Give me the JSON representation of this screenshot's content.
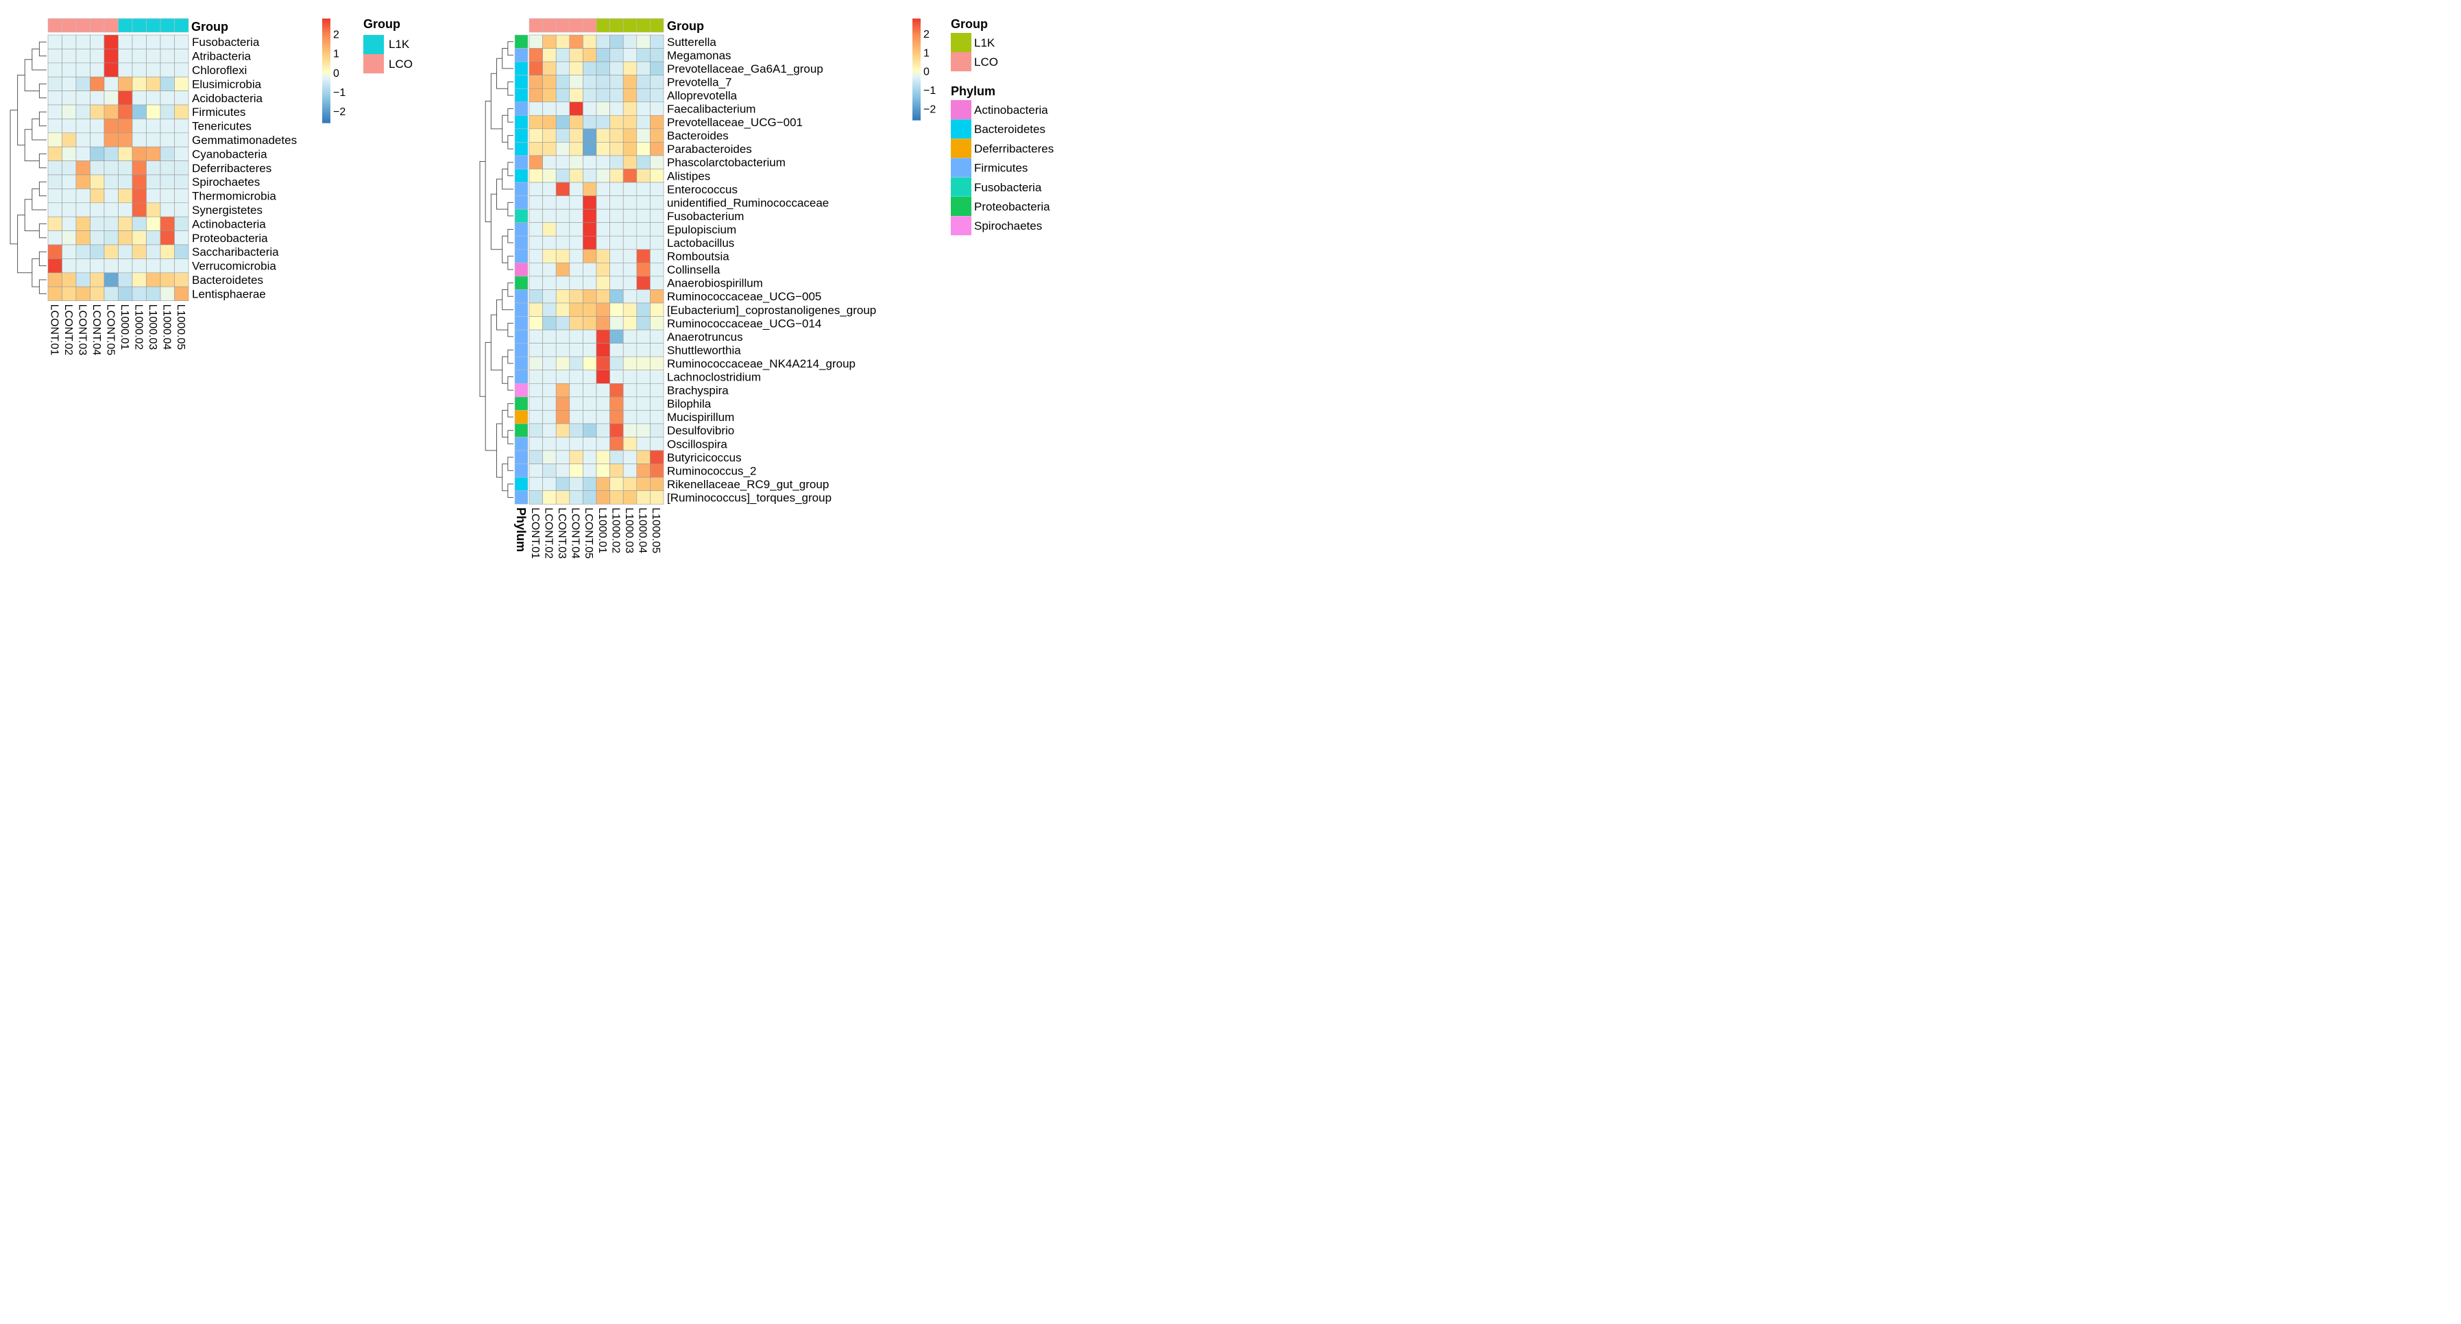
{
  "colors": {
    "LCO": "#F8978F",
    "L1K_left": "#16D1D9",
    "L1K_right": "#A7C40F",
    "phylum": {
      "Actinobacteria": "#F47CD9",
      "Bacteroidetes": "#00CFF0",
      "Deferribacteres": "#F5A700",
      "Firmicutes": "#6EB2FF",
      "Fusobacteria": "#17D6B8",
      "Proteobacteria": "#18C75A",
      "Spirochaetes": "#F98BEA"
    }
  },
  "chart_data": [
    {
      "type": "heatmap",
      "title": "Group",
      "columns": [
        "LCONT.01",
        "LCONT.02",
        "LCONT.03",
        "LCONT.04",
        "LCONT.05",
        "L1000.01",
        "L1000.02",
        "L1000.03",
        "L1000.04",
        "L1000.05"
      ],
      "column_groups": [
        "LCO",
        "LCO",
        "LCO",
        "LCO",
        "LCO",
        "L1K",
        "L1K",
        "L1K",
        "L1K",
        "L1K"
      ],
      "rows": [
        "Fusobacteria",
        "Atribacteria",
        "Chloroflexi",
        "Elusimicrobia",
        "Acidobacteria",
        "Firmicutes",
        "Tenericutes",
        "Gemmatimonadetes",
        "Cyanobacteria",
        "Deferribacteres",
        "Spirochaetes",
        "Thermomicrobia",
        "Synergistetes",
        "Actinobacteria",
        "Proteobacteria",
        "Saccharibacteria",
        "Verrucomicrobia",
        "Bacteroidetes",
        "Lentisphaerae"
      ],
      "values": [
        [
          -0.3,
          -0.3,
          -0.3,
          -0.3,
          2.9,
          -0.3,
          -0.3,
          -0.3,
          -0.3,
          -0.3
        ],
        [
          -0.3,
          -0.3,
          -0.3,
          -0.3,
          2.9,
          -0.3,
          -0.3,
          -0.3,
          -0.3,
          -0.3
        ],
        [
          -0.3,
          -0.3,
          -0.3,
          -0.3,
          2.9,
          -0.3,
          -0.3,
          -0.3,
          -0.3,
          -0.3
        ],
        [
          -0.4,
          -0.3,
          -0.6,
          1.9,
          -0.3,
          1.2,
          0.2,
          0.6,
          -0.8,
          0.1
        ],
        [
          -0.3,
          -0.3,
          -0.3,
          -0.3,
          -0.2,
          2.6,
          -0.3,
          -0.3,
          -0.3,
          -0.3
        ],
        [
          -0.3,
          -0.2,
          -0.4,
          0.6,
          1.1,
          2.2,
          -1.2,
          0.0,
          -0.5,
          0.5
        ],
        [
          -0.3,
          -0.3,
          -0.3,
          -0.3,
          1.8,
          1.8,
          -0.3,
          -0.3,
          -0.3,
          -0.3
        ],
        [
          -0.1,
          0.6,
          -0.3,
          -0.3,
          1.6,
          1.6,
          -0.3,
          -0.3,
          -0.3,
          -0.3
        ],
        [
          0.6,
          -0.2,
          -0.3,
          -1.0,
          -0.7,
          0.3,
          1.5,
          1.4,
          -0.6,
          -0.3
        ],
        [
          -0.4,
          -0.4,
          1.5,
          -0.4,
          -0.4,
          -0.4,
          2.0,
          -0.4,
          -0.4,
          -0.4
        ],
        [
          -0.4,
          -0.3,
          1.2,
          0.3,
          -0.4,
          -0.4,
          2.2,
          -0.4,
          -0.4,
          -0.4
        ],
        [
          -0.3,
          -0.3,
          -0.3,
          0.6,
          -0.3,
          0.5,
          2.3,
          -0.3,
          -0.3,
          -0.3
        ],
        [
          -0.3,
          -0.3,
          -0.3,
          -0.3,
          -0.3,
          -0.3,
          2.3,
          0.5,
          -0.3,
          -0.3
        ],
        [
          0.4,
          -0.3,
          0.8,
          -0.4,
          -0.4,
          0.5,
          -0.6,
          0.0,
          2.3,
          -0.5
        ],
        [
          -0.3,
          -0.2,
          0.9,
          -0.4,
          -0.5,
          0.7,
          0.2,
          -0.5,
          2.4,
          -0.3
        ],
        [
          2.2,
          -0.3,
          -0.5,
          -0.7,
          0.5,
          -0.4,
          0.6,
          -0.4,
          0.3,
          -0.8
        ],
        [
          2.7,
          -0.3,
          -0.3,
          -0.3,
          -0.3,
          -0.3,
          -0.3,
          -0.3,
          -0.3,
          -0.3
        ],
        [
          1.1,
          0.8,
          -0.6,
          0.6,
          -1.8,
          -0.6,
          0.2,
          1.0,
          0.8,
          0.6
        ],
        [
          1.0,
          0.7,
          1.0,
          0.6,
          -0.5,
          -0.9,
          -0.6,
          -0.7,
          -0.2,
          1.3
        ]
      ],
      "legend": {
        "ticks": [
          2,
          1,
          0,
          -1,
          -2
        ],
        "range": [
          -2.6,
          2.8
        ]
      },
      "group_legend": {
        "title": "Group",
        "items": [
          "L1K",
          "LCO"
        ]
      }
    },
    {
      "type": "heatmap",
      "title": "Group",
      "columns": [
        "LCONT.01",
        "LCONT.02",
        "LCONT.03",
        "LCONT.04",
        "LCONT.05",
        "L1000.01",
        "L1000.02",
        "L1000.03",
        "L1000.04",
        "L1000.05"
      ],
      "column_groups": [
        "LCO",
        "LCO",
        "LCO",
        "LCO",
        "LCO",
        "L1K",
        "L1K",
        "L1K",
        "L1K",
        "L1K"
      ],
      "row_annotation_label": "Phylum",
      "rows": [
        "Sutterella",
        "Megamonas",
        "Prevotellaceae_Ga6A1_group",
        "Prevotella_7",
        "Alloprevotella",
        "Faecalibacterium",
        "Prevotellaceae_UCG−001",
        "Bacteroides",
        "Parabacteroides",
        "Phascolarctobacterium",
        "Alistipes",
        "Enterococcus",
        "unidentified_Ruminococcaceae",
        "Fusobacterium",
        "Epulopiscium",
        "Lactobacillus",
        "Romboutsia",
        "Collinsella",
        "Anaerobiospirillum",
        "Ruminococcaceae_UCG−005",
        "[Eubacterium]_coprostanoligenes_group",
        "Ruminococcaceae_UCG−014",
        "Anaerotruncus",
        "Shuttleworthia",
        "Ruminococcaceae_NK4A214_group",
        "Lachnoclostridium",
        "Brachyspira",
        "Bilophila",
        "Mucispirillum",
        "Desulfovibrio",
        "Oscillospira",
        "Butyricicoccus",
        "Ruminococcus_2",
        "Rikenellaceae_RC9_gut_group",
        "[Ruminococcus]_torques_group"
      ],
      "row_phylum": [
        "Proteobacteria",
        "Firmicutes",
        "Bacteroidetes",
        "Bacteroidetes",
        "Bacteroidetes",
        "Firmicutes",
        "Bacteroidetes",
        "Bacteroidetes",
        "Bacteroidetes",
        "Firmicutes",
        "Bacteroidetes",
        "Firmicutes",
        "Firmicutes",
        "Fusobacteria",
        "Firmicutes",
        "Firmicutes",
        "Firmicutes",
        "Actinobacteria",
        "Proteobacteria",
        "Firmicutes",
        "Firmicutes",
        "Firmicutes",
        "Firmicutes",
        "Firmicutes",
        "Firmicutes",
        "Firmicutes",
        "Spirochaetes",
        "Proteobacteria",
        "Deferribacteres",
        "Proteobacteria",
        "Firmicutes",
        "Firmicutes",
        "Firmicutes",
        "Bacteroidetes",
        "Firmicutes"
      ],
      "values": [
        [
          -0.2,
          1.0,
          0.3,
          1.6,
          0.3,
          -0.5,
          -0.9,
          -0.4,
          -0.2,
          -0.6
        ],
        [
          2.0,
          0.2,
          -0.5,
          0.4,
          0.8,
          -0.9,
          -0.6,
          -0.3,
          -0.7,
          -0.7
        ],
        [
          2.2,
          0.7,
          -0.4,
          0.2,
          -0.7,
          -0.8,
          -0.4,
          0.3,
          -0.4,
          -0.9
        ],
        [
          1.3,
          1.0,
          -0.7,
          -0.2,
          -0.5,
          -0.6,
          -0.5,
          1.0,
          -0.6,
          -0.5
        ],
        [
          1.3,
          0.9,
          -0.7,
          0.2,
          -0.5,
          -0.6,
          -0.5,
          1.0,
          -0.6,
          -0.5
        ],
        [
          -0.3,
          -0.3,
          -0.3,
          2.8,
          -0.3,
          -0.2,
          -0.3,
          0.4,
          -0.3,
          -0.3
        ],
        [
          0.9,
          1.0,
          -1.1,
          0.8,
          -0.6,
          -0.6,
          0.5,
          0.6,
          -0.4,
          1.2
        ],
        [
          0.2,
          0.4,
          -0.6,
          0.4,
          -1.8,
          0.3,
          0.5,
          0.9,
          -0.2,
          1.1
        ],
        [
          0.5,
          0.5,
          -0.2,
          0.3,
          -1.8,
          0.2,
          0.4,
          0.9,
          0.0,
          1.3
        ],
        [
          1.6,
          -0.3,
          -0.3,
          -0.2,
          -0.3,
          -0.3,
          -0.5,
          0.6,
          -0.7,
          -0.2
        ],
        [
          0.1,
          -0.1,
          -0.6,
          0.3,
          -0.4,
          -0.2,
          0.3,
          2.2,
          0.4,
          0.1
        ],
        [
          -0.3,
          -0.3,
          2.5,
          -0.3,
          1.0,
          -0.3,
          -0.3,
          -0.3,
          -0.3,
          -0.3
        ],
        [
          -0.3,
          -0.3,
          -0.3,
          -0.3,
          3.0,
          -0.3,
          -0.3,
          -0.3,
          -0.3,
          -0.3
        ],
        [
          -0.3,
          -0.3,
          -0.3,
          -0.3,
          3.0,
          -0.3,
          -0.3,
          -0.3,
          -0.3,
          -0.3
        ],
        [
          -0.3,
          0.2,
          -0.3,
          -0.3,
          3.0,
          -0.3,
          -0.3,
          -0.3,
          -0.3,
          -0.3
        ],
        [
          -0.3,
          -0.3,
          -0.3,
          -0.3,
          3.0,
          -0.3,
          -0.3,
          -0.3,
          -0.3,
          -0.3
        ],
        [
          -0.3,
          0.2,
          0.3,
          -0.3,
          1.2,
          0.5,
          -0.3,
          -0.3,
          2.4,
          -0.3
        ],
        [
          -0.3,
          -0.3,
          1.2,
          -0.3,
          -0.3,
          0.5,
          -0.3,
          -0.3,
          2.0,
          -0.3
        ],
        [
          -0.3,
          -0.3,
          -0.3,
          -0.3,
          -0.3,
          0.2,
          -0.3,
          -0.3,
          2.6,
          -0.3
        ],
        [
          -0.7,
          -0.4,
          0.3,
          0.6,
          1.0,
          0.7,
          -1.2,
          -0.3,
          -0.4,
          1.2
        ],
        [
          0.2,
          -0.5,
          0.2,
          0.9,
          0.9,
          1.3,
          0.0,
          0.2,
          -0.8,
          0.1
        ],
        [
          0.0,
          -0.9,
          -0.6,
          0.7,
          0.8,
          1.5,
          -0.2,
          0.1,
          -0.8,
          -0.1
        ],
        [
          -0.3,
          -0.3,
          -0.3,
          -0.3,
          -0.3,
          2.7,
          -1.5,
          -0.3,
          -0.3,
          -0.3
        ],
        [
          -0.3,
          -0.3,
          -0.3,
          -0.3,
          -0.3,
          3.0,
          -0.3,
          -0.3,
          -0.3,
          -0.3
        ],
        [
          -0.2,
          -0.3,
          -0.1,
          -0.5,
          0.0,
          2.5,
          -0.5,
          -0.1,
          -0.1,
          -0.1
        ],
        [
          -0.3,
          -0.3,
          -0.3,
          -0.3,
          -0.3,
          3.0,
          -0.3,
          -0.3,
          -0.3,
          -0.3
        ],
        [
          -0.3,
          -0.3,
          1.3,
          -0.3,
          -0.3,
          -0.3,
          2.3,
          -0.3,
          -0.3,
          -0.3
        ],
        [
          -0.3,
          -0.3,
          1.6,
          -0.3,
          -0.3,
          -0.3,
          1.9,
          -0.3,
          -0.3,
          -0.3
        ],
        [
          -0.3,
          -0.3,
          1.6,
          -0.3,
          -0.3,
          -0.3,
          1.9,
          -0.3,
          -0.3,
          -0.3
        ],
        [
          -0.5,
          -0.3,
          0.5,
          -0.6,
          -1.0,
          -0.4,
          2.5,
          -0.2,
          -0.2,
          -0.4
        ],
        [
          -0.3,
          -0.3,
          -0.3,
          -0.3,
          -0.3,
          -0.3,
          2.1,
          0.3,
          -0.3,
          -0.3
        ],
        [
          -0.6,
          -0.2,
          -0.3,
          0.4,
          -0.3,
          0.1,
          -0.5,
          -0.3,
          0.7,
          2.5
        ],
        [
          -0.3,
          -0.5,
          -0.3,
          0.0,
          -0.3,
          0.0,
          0.6,
          -0.3,
          1.4,
          2.1
        ],
        [
          -0.3,
          -0.3,
          -0.8,
          -0.4,
          -0.8,
          1.1,
          0.2,
          0.5,
          1.0,
          1.1
        ],
        [
          -0.7,
          0.1,
          0.3,
          -0.5,
          -0.8,
          1.2,
          0.7,
          0.9,
          0.3,
          0.3
        ]
      ],
      "legend": {
        "ticks": [
          2,
          1,
          0,
          -1,
          -2
        ],
        "range": [
          -2.6,
          2.8
        ]
      },
      "group_legend": {
        "title": "Group",
        "items": [
          "L1K",
          "LCO"
        ]
      },
      "phylum_legend": {
        "title": "Phylum",
        "items": [
          "Actinobacteria",
          "Bacteroidetes",
          "Deferribacteres",
          "Firmicutes",
          "Fusobacteria",
          "Proteobacteria",
          "Spirochaetes"
        ]
      }
    }
  ]
}
